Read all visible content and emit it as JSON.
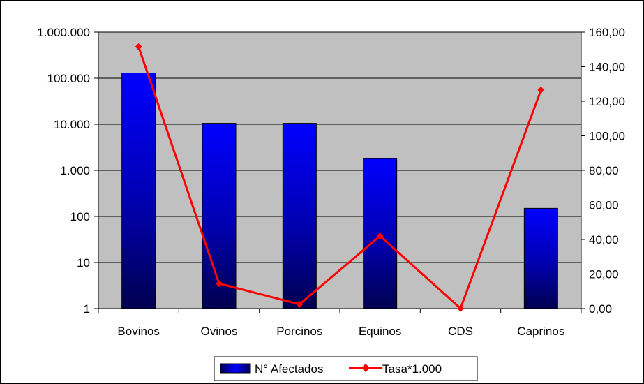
{
  "chart_data": {
    "type": "bar",
    "categories": [
      "Bovinos",
      "Ovinos",
      "Porcinos",
      "Equinos",
      "CDS",
      "Caprinos"
    ],
    "series": [
      {
        "name": "N° Afectados",
        "type": "bar",
        "axis": "left",
        "scale": "log",
        "values": [
          130000,
          10500,
          10500,
          1800,
          null,
          150
        ],
        "color": "#0000ff"
      },
      {
        "name": "Tasa*1.000",
        "type": "line",
        "axis": "right",
        "values": [
          151.5,
          14.5,
          2.5,
          42,
          0.1,
          126.5
        ],
        "color": "#ff0000"
      }
    ],
    "y_left": {
      "scale": "log",
      "ylim": [
        1,
        1000000
      ],
      "ticks": [
        1,
        10,
        100,
        1000,
        10000,
        100000,
        1000000
      ],
      "tick_labels": [
        "1",
        "10",
        "100",
        "1.000",
        "10.000",
        "100.000",
        "1.000.000"
      ]
    },
    "y_right": {
      "ylim": [
        0,
        160
      ],
      "ticks": [
        0,
        20,
        40,
        60,
        80,
        100,
        120,
        140,
        160
      ],
      "tick_labels": [
        "0,00",
        "20,00",
        "40,00",
        "60,00",
        "80,00",
        "100,00",
        "120,00",
        "140,00",
        "160,00"
      ]
    },
    "grid": true,
    "plot_background": "#c0c0c0",
    "legend_position": "bottom"
  }
}
